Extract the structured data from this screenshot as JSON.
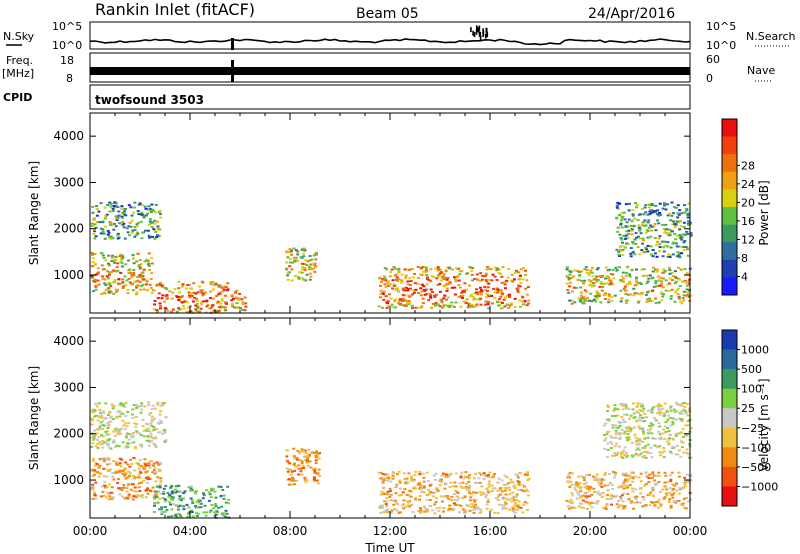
{
  "header": {
    "station": "Rankin Inlet (fitACF)",
    "beam": "Beam 05",
    "date": "24/Apr/2016"
  },
  "summary": {
    "nsky_label": "N.Sky",
    "nsky_ticks": [
      "10^5",
      "10^0"
    ],
    "nsearch_label": "N.Search",
    "nsearch_ticks": [
      "10^5",
      "10^0"
    ],
    "freq_label_1": "Freq.",
    "freq_label_2": "[MHz]",
    "freq_ticks": [
      "18",
      "8"
    ],
    "nave_label": "Nave",
    "nave_ticks": [
      "60",
      "0"
    ],
    "cpid_label": "CPID",
    "cpid_value": "twofsound 3503"
  },
  "chart_data": [
    {
      "type": "heatmap",
      "panel": "power",
      "xlabel": "",
      "ylabel": "Slant Range [km]",
      "xlim": [
        0,
        24
      ],
      "ylim": [
        180,
        4500
      ],
      "yticks": [
        1000,
        2000,
        3000,
        4000
      ],
      "colorbar_label": "Power [dB]",
      "colorbar_ticks": [
        "4",
        "8",
        "12",
        "16",
        "20",
        "24",
        "28"
      ],
      "colorbar_colors": [
        "#1a1aff",
        "#1f3fb0",
        "#2f6fa0",
        "#3a9a60",
        "#60c040",
        "#d8d010",
        "#f0a010",
        "#f07010",
        "#f04010",
        "#e81010"
      ],
      "echo_regions": [
        {
          "t": [
            0.0,
            2.5
          ],
          "range": [
            600,
            1500
          ],
          "level": 0.72
        },
        {
          "t": [
            0.0,
            2.8
          ],
          "range": [
            1800,
            2600
          ],
          "level": 0.45
        },
        {
          "t": [
            2.5,
            5.5
          ],
          "range": [
            200,
            900
          ],
          "level": 0.85
        },
        {
          "t": [
            5.6,
            6.2
          ],
          "range": [
            250,
            700
          ],
          "level": 0.75
        },
        {
          "t": [
            7.8,
            9.0
          ],
          "range": [
            900,
            1600
          ],
          "level": 0.7
        },
        {
          "t": [
            11.5,
            17.5
          ],
          "range": [
            300,
            1200
          ],
          "level": 0.85
        },
        {
          "t": [
            19.0,
            24.0
          ],
          "range": [
            400,
            1200
          ],
          "level": 0.65
        },
        {
          "t": [
            21.0,
            24.0
          ],
          "range": [
            1400,
            2600
          ],
          "level": 0.45
        }
      ]
    },
    {
      "type": "heatmap",
      "panel": "velocity",
      "xlabel": "Time UT",
      "ylabel": "Slant Range [km]",
      "xlim": [
        0,
        24
      ],
      "ylim": [
        180,
        4500
      ],
      "xticks": [
        "00:00",
        "04:00",
        "08:00",
        "12:00",
        "16:00",
        "20:00",
        "00:00"
      ],
      "yticks": [
        1000,
        2000,
        3000,
        4000
      ],
      "colorbar_label": "Velocity [m s⁻¹]",
      "colorbar_ticks": [
        "1000",
        "500",
        "100",
        "25",
        "−25",
        "−100",
        "−500",
        "−1000"
      ],
      "colorbar_colors": [
        "#1a3ab0",
        "#2a6a9a",
        "#3a9a60",
        "#7ad040",
        "#c8c8c8",
        "#f0c040",
        "#f08a10",
        "#f05010",
        "#e81010"
      ],
      "echo_regions": [
        {
          "t": [
            0.0,
            2.8
          ],
          "range": [
            600,
            1500
          ],
          "level": -0.4
        },
        {
          "t": [
            0.0,
            3.0
          ],
          "range": [
            1700,
            2700
          ],
          "level": 0.0
        },
        {
          "t": [
            2.5,
            5.5
          ],
          "range": [
            200,
            900
          ],
          "level": 0.4
        },
        {
          "t": [
            7.8,
            9.2
          ],
          "range": [
            900,
            1700
          ],
          "level": -0.5
        },
        {
          "t": [
            11.5,
            17.5
          ],
          "range": [
            300,
            1200
          ],
          "level": -0.3
        },
        {
          "t": [
            19.0,
            24.0
          ],
          "range": [
            400,
            1200
          ],
          "level": -0.3
        },
        {
          "t": [
            20.5,
            24.0
          ],
          "range": [
            1500,
            2700
          ],
          "level": 0.0
        }
      ]
    }
  ]
}
